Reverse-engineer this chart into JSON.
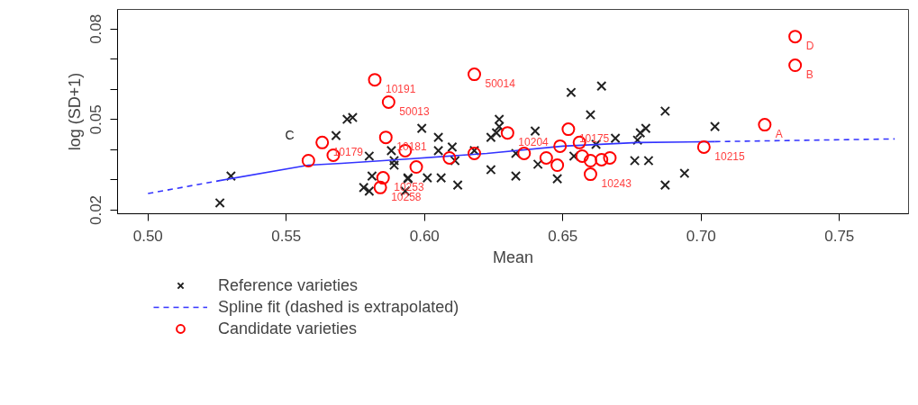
{
  "chart_data": {
    "type": "scatter",
    "xlabel": "Mean",
    "ylabel": "log (SD+1)",
    "xlim": [
      0.489,
      0.775
    ],
    "ylim": [
      0.0188,
      0.0865
    ],
    "xticks": [
      {
        "value": 0.5,
        "label": "0.50"
      },
      {
        "value": 0.55,
        "label": "0.55"
      },
      {
        "value": 0.6,
        "label": "0.60"
      },
      {
        "value": 0.65,
        "label": "0.65"
      },
      {
        "value": 0.7,
        "label": "0.70"
      },
      {
        "value": 0.75,
        "label": "0.75"
      }
    ],
    "yticks": [
      0.02,
      {
        "value": 0.03,
        "label": null
      },
      {
        "value": 0.04,
        "label": null
      },
      0.05,
      {
        "value": 0.06,
        "label": null
      },
      {
        "value": 0.07,
        "label": null
      },
      0.08
    ],
    "grid": false,
    "legend": "bottom left",
    "series": [
      {
        "name": "Reference varieties",
        "type": "scatter",
        "marker": "cross",
        "color": "#222222",
        "x": [
          0.526,
          0.53,
          0.568,
          0.572,
          0.574,
          0.58,
          0.581,
          0.578,
          0.58,
          0.588,
          0.589,
          0.589,
          0.594,
          0.593,
          0.599,
          0.605,
          0.605,
          0.61,
          0.611,
          0.594,
          0.601,
          0.606,
          0.612,
          0.618,
          0.624,
          0.624,
          0.627,
          0.627,
          0.626,
          0.633,
          0.633,
          0.64,
          0.641,
          0.648,
          0.653,
          0.66,
          0.664,
          0.662,
          0.654,
          0.669,
          0.677,
          0.68,
          0.678,
          0.676,
          0.681,
          0.687,
          0.687,
          0.694,
          0.705
        ],
        "values": [
          0.0224,
          0.0313,
          0.0447,
          0.0501,
          0.0507,
          0.0379,
          0.0313,
          0.0275,
          0.0263,
          0.0397,
          0.0364,
          0.0349,
          0.0304,
          0.0263,
          0.0471,
          0.0441,
          0.0397,
          0.0409,
          0.0364,
          0.0307,
          0.0307,
          0.0307,
          0.0283,
          0.0397,
          0.0441,
          0.0334,
          0.0501,
          0.0477,
          0.0456,
          0.0313,
          0.0388,
          0.0462,
          0.0352,
          0.0304,
          0.059,
          0.0516,
          0.0611,
          0.0418,
          0.0379,
          0.0438,
          0.0432,
          0.0471,
          0.0456,
          0.0364,
          0.0364,
          0.0528,
          0.0283,
          0.0322,
          0.0477
        ]
      },
      {
        "type": "line",
        "line_style": "dashed",
        "color": "#3333ff",
        "x": [
          0.5,
          0.526
        ],
        "values": [
          0.0255,
          0.0298
        ]
      },
      {
        "type": "line",
        "line_style": "solid",
        "color": "#3333ff",
        "x": [
          0.526,
          0.558,
          0.57,
          0.59,
          0.6225,
          0.65,
          0.677,
          0.705
        ],
        "values": [
          0.0298,
          0.0349,
          0.0355,
          0.0367,
          0.0388,
          0.0412,
          0.0424,
          0.0427
        ]
      },
      {
        "name": "Spline fit (dashed is extrapolated)",
        "type": "line",
        "line_style": "dashed",
        "color": "#3333ff",
        "x": [
          0.705,
          0.77
        ],
        "values": [
          0.0427,
          0.0436
        ]
      },
      {
        "name": "Candidate varieties",
        "type": "scatter",
        "marker": "circle",
        "color": "#ff0000",
        "x": [
          0.582,
          0.587,
          0.563,
          0.567,
          0.558,
          0.586,
          0.585,
          0.584,
          0.593,
          0.618,
          0.597,
          0.609,
          0.618,
          0.63,
          0.636,
          0.644,
          0.648,
          0.649,
          0.652,
          0.656,
          0.657,
          0.66,
          0.664,
          0.667,
          0.66,
          0.701,
          0.734,
          0.734,
          0.723
        ],
        "values": [
          0.0632,
          0.0558,
          0.0424,
          0.0382,
          0.0364,
          0.0441,
          0.0307,
          0.0275,
          0.0397,
          0.065,
          0.0343,
          0.0373,
          0.0388,
          0.0456,
          0.0388,
          0.0373,
          0.0349,
          0.0412,
          0.0468,
          0.0424,
          0.0379,
          0.0364,
          0.0367,
          0.0373,
          0.0319,
          0.0409,
          0.0775,
          0.068,
          0.0483
        ]
      }
    ],
    "annotations": [
      {
        "text": "10191",
        "x": 0.582,
        "y": 0.0632
      },
      {
        "text": "50013",
        "x": 0.587,
        "y": 0.0558
      },
      {
        "text": "10179",
        "x": 0.563,
        "y": 0.0424
      },
      {
        "text": "10181",
        "x": 0.586,
        "y": 0.0441
      },
      {
        "text": "10253",
        "x": 0.585,
        "y": 0.0307
      },
      {
        "text": "10258",
        "x": 0.584,
        "y": 0.0275
      },
      {
        "text": "50014",
        "x": 0.618,
        "y": 0.065
      },
      {
        "text": "10204",
        "x": 0.63,
        "y": 0.0456
      },
      {
        "text": "10175",
        "x": 0.652,
        "y": 0.0468
      },
      {
        "text": "10243",
        "x": 0.66,
        "y": 0.0319
      },
      {
        "text": "10215",
        "x": 0.701,
        "y": 0.0409
      },
      {
        "text": "D",
        "x": 0.734,
        "y": 0.0775
      },
      {
        "text": "B",
        "x": 0.734,
        "y": 0.068
      },
      {
        "text": "A",
        "x": 0.723,
        "y": 0.0483
      },
      "C"
    ]
  }
}
